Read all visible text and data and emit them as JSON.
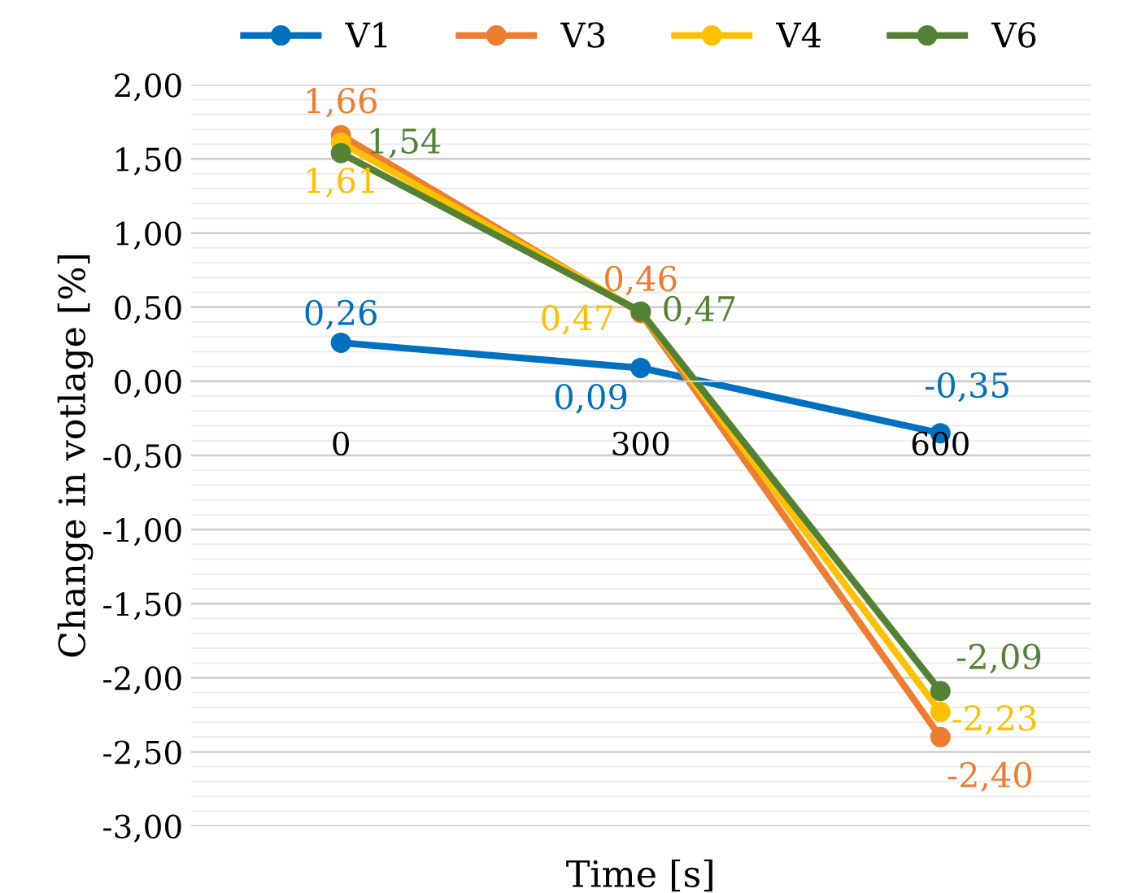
{
  "chart_data": {
    "type": "line",
    "xlabel": "Time [s]",
    "ylabel": "Change in votlage [%]",
    "categories": [
      "0",
      "300",
      "600"
    ],
    "series": [
      {
        "name": "V1",
        "color": "#0070c0",
        "values": [
          0.26,
          0.09,
          -0.35
        ],
        "value_labels": [
          "0,26",
          "0,09",
          "-0,35"
        ]
      },
      {
        "name": "V3",
        "color": "#ed7d31",
        "values": [
          1.66,
          0.46,
          -2.4
        ],
        "value_labels": [
          "1,66",
          "0,46",
          "-2,40"
        ]
      },
      {
        "name": "V4",
        "color": "#ffc000",
        "values": [
          1.61,
          0.47,
          -2.23
        ],
        "value_labels": [
          "1,61",
          "0,47",
          "-2,23"
        ]
      },
      {
        "name": "V6",
        "color": "#548235",
        "values": [
          1.54,
          0.47,
          -2.09
        ],
        "value_labels": [
          "1,54",
          "0,47",
          "-2,09"
        ]
      }
    ],
    "ylim": [
      -3,
      2
    ],
    "yticks": [
      {
        "value": -3,
        "label": "-3,00"
      },
      {
        "value": -2.5,
        "label": "-2,50"
      },
      {
        "value": -2,
        "label": "-2,00"
      },
      {
        "value": -1.5,
        "label": "-1,50"
      },
      {
        "value": -1,
        "label": "-1,00"
      },
      {
        "value": -0.5,
        "label": "-0,50"
      },
      {
        "value": 0,
        "label": "0,00"
      },
      {
        "value": 0.5,
        "label": "0,50"
      },
      {
        "value": 1,
        "label": "1,00"
      },
      {
        "value": 1.5,
        "label": "1,50"
      },
      {
        "value": 2,
        "label": "2,00"
      }
    ],
    "grid": "y",
    "legend": "top",
    "marker": "circle",
    "line_style": "solid"
  }
}
